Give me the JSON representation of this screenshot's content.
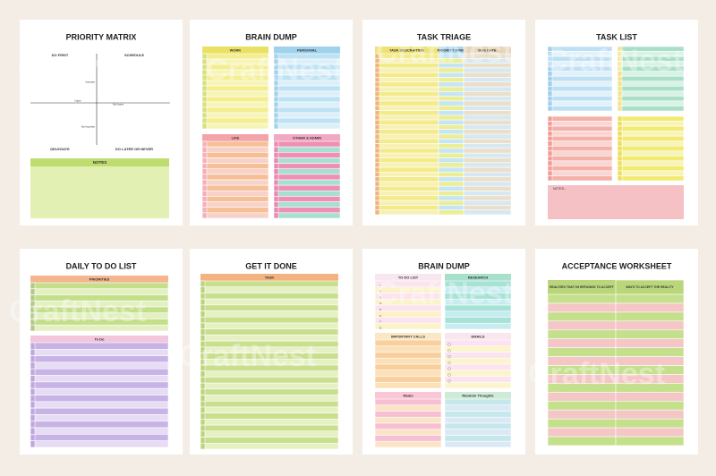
{
  "watermark": "CraftNest",
  "pages": [
    {
      "title": "PRIORITY MATRIX",
      "labels": [
        "DO FIRST",
        "SCHEDULE",
        "DELEGATE",
        "DO LATER OR NEVER",
        "NOTES",
        "Urgent",
        "Not Urgent",
        "Important",
        "Not Important"
      ]
    },
    {
      "title": "BRAIN DUMP",
      "labels": [
        "WORK",
        "PERSONAL",
        "LIFE",
        "OTHER & ADMIN"
      ]
    },
    {
      "title": "TASK TRIAGE",
      "labels": [
        "TASK DESCRIPTION",
        "PRIORITY H/M/L",
        "DUE DATE"
      ]
    },
    {
      "title": "TASK LIST",
      "labels": [
        "NOTES..."
      ]
    },
    {
      "title": "DAILY TO DO LIST",
      "labels": [
        "PRIORITIES",
        "To Do"
      ]
    },
    {
      "title": "GET IT DONE",
      "labels": [
        "TASK"
      ]
    },
    {
      "title": "BRAIN DUMP",
      "labels": [
        "TO DO LIST",
        "RESEARCH",
        "IMPORTANT CALLS",
        "EMAILS",
        "Meals",
        "Random Thoughts",
        "1.",
        "2.",
        "3.",
        "4.",
        "5.",
        "6.",
        "7.",
        "8."
      ]
    },
    {
      "title": "ACCEPTANCE WORKSHEET",
      "labels": [
        "REALITIES THAT I'M REFUSING TO ACCEPT",
        "WAYS TO ACCEPT THE REALITY"
      ]
    }
  ]
}
